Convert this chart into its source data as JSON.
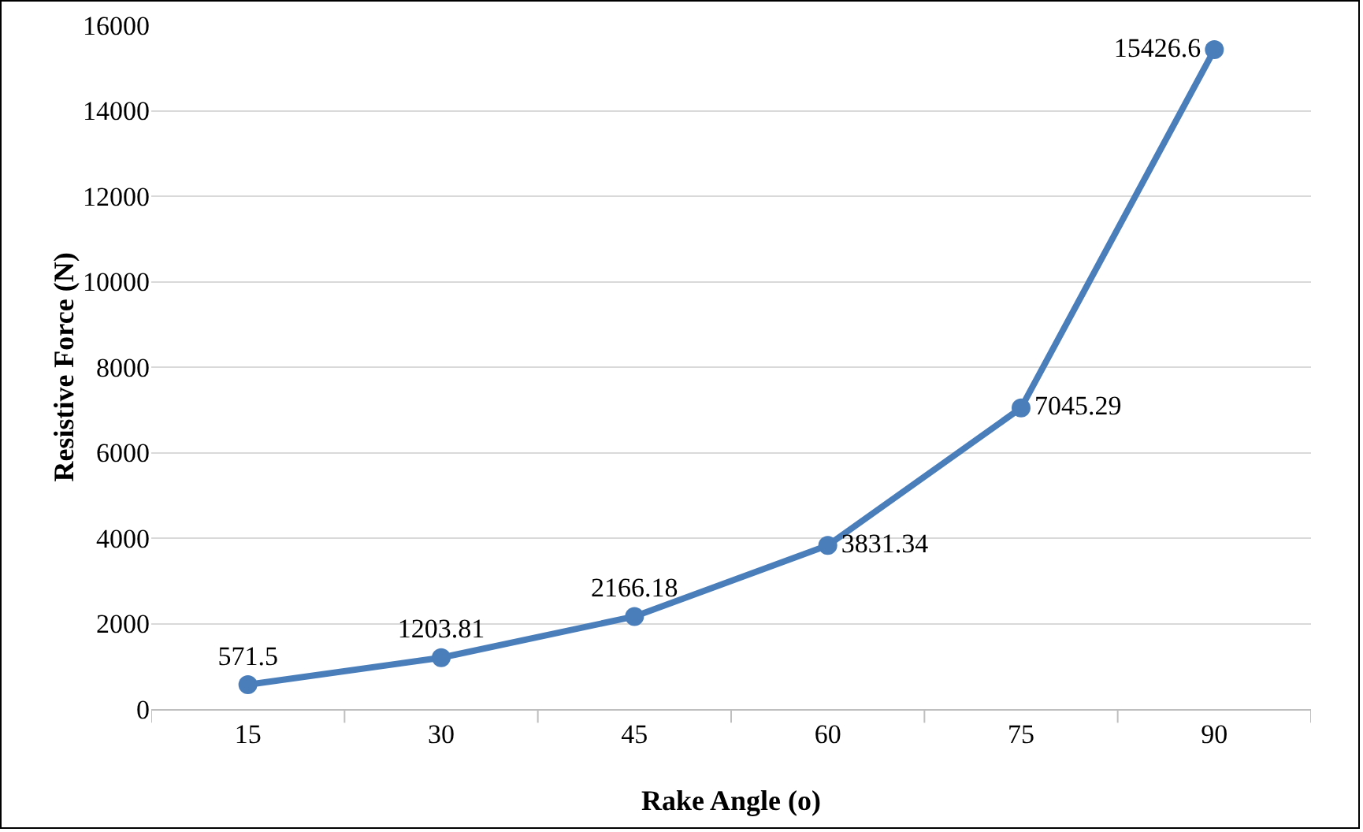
{
  "chart_data": {
    "type": "line",
    "xlabel": "Rake Angle (o)",
    "ylabel": "Resistive Force (N)",
    "categories": [
      "15",
      "30",
      "45",
      "60",
      "75",
      "90"
    ],
    "series": [
      {
        "color": "#4a7ebb",
        "values": [
          571.5,
          1203.81,
          2166.18,
          3831.34,
          7045.29,
          15426.6
        ]
      }
    ],
    "ylim": [
      0,
      16000
    ],
    "yticks": [
      0,
      2000,
      4000,
      6000,
      8000,
      10000,
      12000,
      14000,
      16000
    ],
    "grid": "y",
    "marker": "circle",
    "line_style": "solid",
    "data_labels": true,
    "legend": false
  }
}
